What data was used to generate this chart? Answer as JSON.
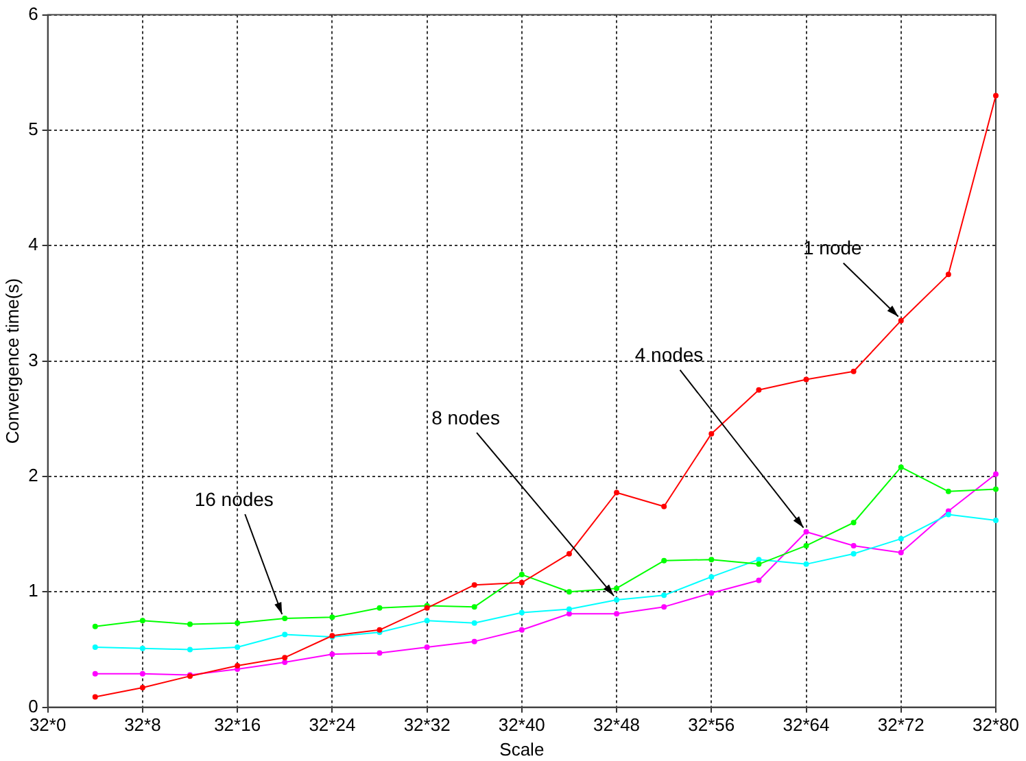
{
  "chart_data": {
    "type": "line",
    "xlabel": "Scale",
    "ylabel": "Convergence time(s)",
    "categories": [
      "32*0",
      null,
      "32*8",
      null,
      "32*16",
      null,
      "32*24",
      null,
      "32*32",
      null,
      "32*40",
      null,
      "32*48",
      null,
      "32*56",
      null,
      "32*64",
      null,
      "32*72",
      null,
      "32*80"
    ],
    "ylim": [
      0,
      6
    ],
    "yticks": [
      0,
      1,
      2,
      3,
      4,
      5,
      6
    ],
    "grid": true,
    "legend": false,
    "marker": "circle",
    "line_style": "solid",
    "series": [
      {
        "name": "1 node",
        "color": "#ff0000",
        "values": [
          null,
          0.09,
          0.17,
          0.27,
          0.36,
          0.43,
          0.62,
          0.67,
          0.86,
          1.06,
          1.08,
          1.33,
          1.86,
          1.74,
          2.37,
          2.75,
          2.84,
          2.91,
          3.35,
          3.75,
          5.3
        ]
      },
      {
        "name": "16 nodes",
        "color": "#00ff00",
        "values": [
          null,
          0.7,
          0.75,
          0.72,
          0.73,
          0.77,
          0.78,
          0.86,
          0.88,
          0.87,
          1.15,
          1.0,
          1.03,
          1.27,
          1.28,
          1.24,
          1.4,
          1.6,
          2.08,
          1.87,
          1.89
        ]
      },
      {
        "name": "8 nodes",
        "color": "#00ffff",
        "values": [
          null,
          0.52,
          0.51,
          0.5,
          0.52,
          0.63,
          0.61,
          0.65,
          0.75,
          0.73,
          0.82,
          0.85,
          0.93,
          0.97,
          1.13,
          1.28,
          1.24,
          1.33,
          1.46,
          1.67,
          1.62
        ]
      },
      {
        "name": "4 nodes",
        "color": "#ff00ff",
        "values": [
          null,
          0.29,
          0.29,
          0.28,
          0.33,
          0.39,
          0.46,
          0.47,
          0.52,
          0.57,
          0.67,
          0.81,
          0.81,
          0.87,
          0.99,
          1.1,
          1.52,
          1.4,
          1.34,
          1.7,
          2.02
        ]
      }
    ]
  }
}
